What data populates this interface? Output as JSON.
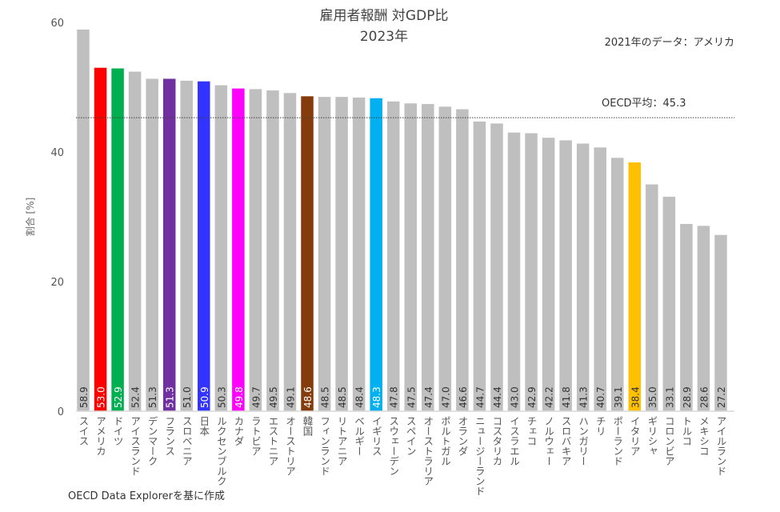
{
  "chart_data": {
    "type": "bar",
    "title": "雇用者報酬 対GDP比",
    "subtitle": "2023年",
    "note": "2021年のデータ：アメリカ",
    "ylabel": "割合 [%]",
    "xlabel": "",
    "ylim": [
      0,
      60
    ],
    "yticks": [
      0,
      20,
      40,
      60
    ],
    "grid": false,
    "source": "OECD Data Explorerを基に作成",
    "reference_line": {
      "label": "OECD平均：45.3",
      "value": 45.3
    },
    "categories": [
      "スイス",
      "アメリカ",
      "ドイツ",
      "アイスランド",
      "デンマーク",
      "フランス",
      "スロベニア",
      "日本",
      "ルクセンブルク",
      "カナダ",
      "ラトビア",
      "エストニア",
      "オーストリア",
      "韓国",
      "フィンランド",
      "リトアニア",
      "ベルギー",
      "イギリス",
      "スウェーデン",
      "スペイン",
      "オーストラリア",
      "ポルトガル",
      "オランダ",
      "ニュージーランド",
      "コスタリカ",
      "イスラエル",
      "チェコ",
      "ノルウェー",
      "スロバキア",
      "ハンガリー",
      "チリ",
      "ポーランド",
      "イタリア",
      "ギリシャ",
      "コロンビア",
      "トルコ",
      "メキシコ",
      "アイルランド"
    ],
    "values": [
      58.9,
      53.0,
      52.9,
      52.4,
      51.3,
      51.3,
      51.0,
      50.9,
      50.3,
      49.8,
      49.7,
      49.5,
      49.1,
      48.6,
      48.5,
      48.5,
      48.4,
      48.3,
      47.8,
      47.5,
      47.4,
      47.0,
      46.6,
      44.7,
      44.4,
      43.0,
      42.9,
      42.2,
      41.8,
      41.3,
      40.7,
      39.1,
      38.4,
      35.0,
      33.1,
      28.9,
      28.6,
      27.2
    ],
    "value_labels": [
      "58.9",
      "53.0",
      "52.9",
      "52.4",
      "51.3",
      "51.3",
      "51.0",
      "50.9",
      "50.3",
      "49.8",
      "49.7",
      "49.5",
      "49.1",
      "48.6",
      "48.5",
      "48.5",
      "48.4",
      "48.3",
      "47.8",
      "47.5",
      "47.4",
      "47.0",
      "46.6",
      "44.7",
      "44.4",
      "43.0",
      "42.9",
      "42.2",
      "41.8",
      "41.3",
      "40.7",
      "39.1",
      "38.4",
      "35.0",
      "33.1",
      "28.9",
      "28.6",
      "27.2"
    ],
    "default_color": "#bfbfbf",
    "highlight_colors": {
      "アメリカ": "#ff0000",
      "ドイツ": "#00b050",
      "フランス": "#7030a0",
      "日本": "#3333ff",
      "カナダ": "#ff00ff",
      "韓国": "#843c0c",
      "イギリス": "#00b0f0",
      "イタリア": "#ffc000"
    }
  }
}
